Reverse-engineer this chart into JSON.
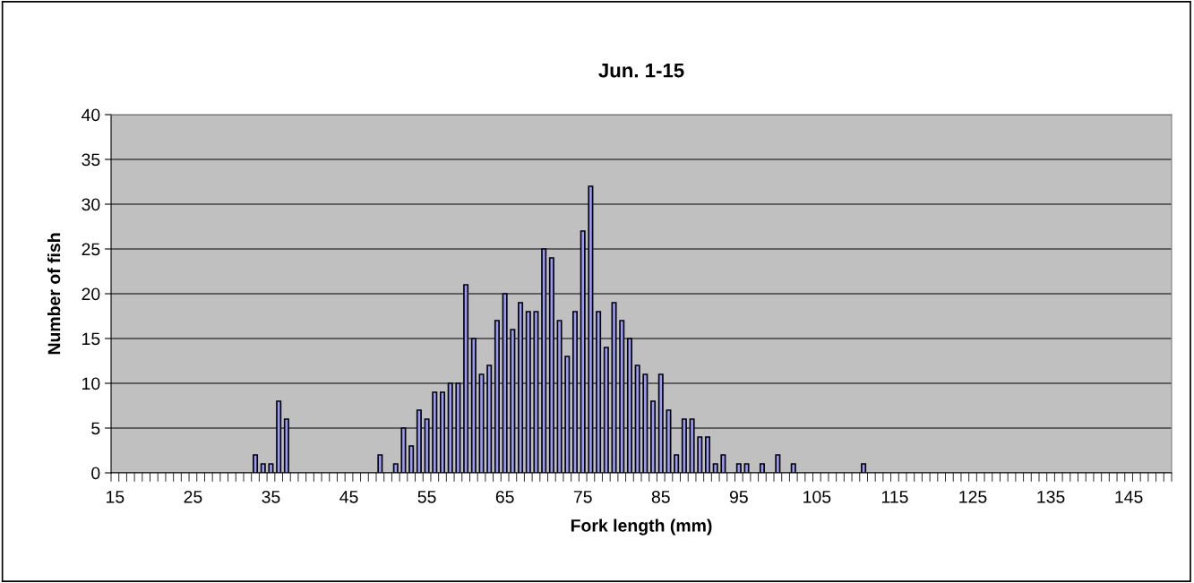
{
  "chart_data": {
    "type": "bar",
    "title": "Jun. 1-15",
    "xlabel": "Fork length (mm)",
    "ylabel": "Number of fish",
    "categories": [
      "15",
      null,
      null,
      null,
      null,
      null,
      null,
      null,
      null,
      null,
      "25",
      null,
      null,
      null,
      null,
      null,
      null,
      null,
      null,
      null,
      "35",
      null,
      null,
      null,
      null,
      null,
      null,
      null,
      null,
      null,
      "45",
      null,
      null,
      null,
      null,
      null,
      null,
      null,
      null,
      null,
      "55",
      null,
      null,
      null,
      null,
      null,
      null,
      null,
      null,
      null,
      "65",
      null,
      null,
      null,
      null,
      null,
      null,
      null,
      null,
      null,
      "75",
      null,
      null,
      null,
      null,
      null,
      null,
      null,
      null,
      null,
      "85",
      null,
      null,
      null,
      null,
      null,
      null,
      null,
      null,
      null,
      "95",
      null,
      null,
      null,
      null,
      null,
      null,
      null,
      null,
      null,
      "105",
      null,
      null,
      null,
      null,
      null,
      null,
      null,
      null,
      null,
      "115",
      null,
      null,
      null,
      null,
      null,
      null,
      null,
      null,
      null,
      "125",
      null,
      null,
      null,
      null,
      null,
      null,
      null,
      null,
      null,
      "135",
      null,
      null,
      null,
      null,
      null,
      null,
      null,
      null,
      null,
      "145",
      null,
      null,
      null,
      null,
      null
    ],
    "values": [
      0,
      0,
      0,
      0,
      0,
      0,
      0,
      0,
      0,
      0,
      0,
      0,
      0,
      0,
      0,
      0,
      0,
      0,
      2,
      1,
      1,
      8,
      6,
      0,
      0,
      0,
      0,
      0,
      0,
      0,
      0,
      0,
      0,
      0,
      2,
      0,
      1,
      5,
      3,
      7,
      6,
      9,
      9,
      10,
      10,
      21,
      15,
      11,
      12,
      17,
      20,
      16,
      19,
      18,
      18,
      25,
      24,
      17,
      13,
      18,
      27,
      32,
      18,
      14,
      19,
      17,
      15,
      12,
      11,
      8,
      11,
      7,
      2,
      6,
      6,
      4,
      4,
      1,
      2,
      0,
      1,
      1,
      0,
      1,
      0,
      2,
      0,
      1,
      0,
      0,
      0,
      0,
      0,
      0,
      0,
      0,
      1,
      0,
      0,
      0,
      0,
      0,
      0,
      0,
      0,
      0,
      0,
      0,
      0,
      0,
      0,
      0,
      0,
      0,
      0,
      0,
      0,
      0,
      0,
      0,
      0,
      0,
      0,
      0,
      0,
      0,
      0,
      0,
      0,
      0,
      0,
      0,
      0,
      0,
      0,
      0
    ],
    "color": "#9999ff",
    "ylim": [
      0,
      40
    ],
    "yticks": [
      0,
      5,
      10,
      15,
      20,
      25,
      30,
      35,
      40
    ],
    "grid": "y"
  }
}
